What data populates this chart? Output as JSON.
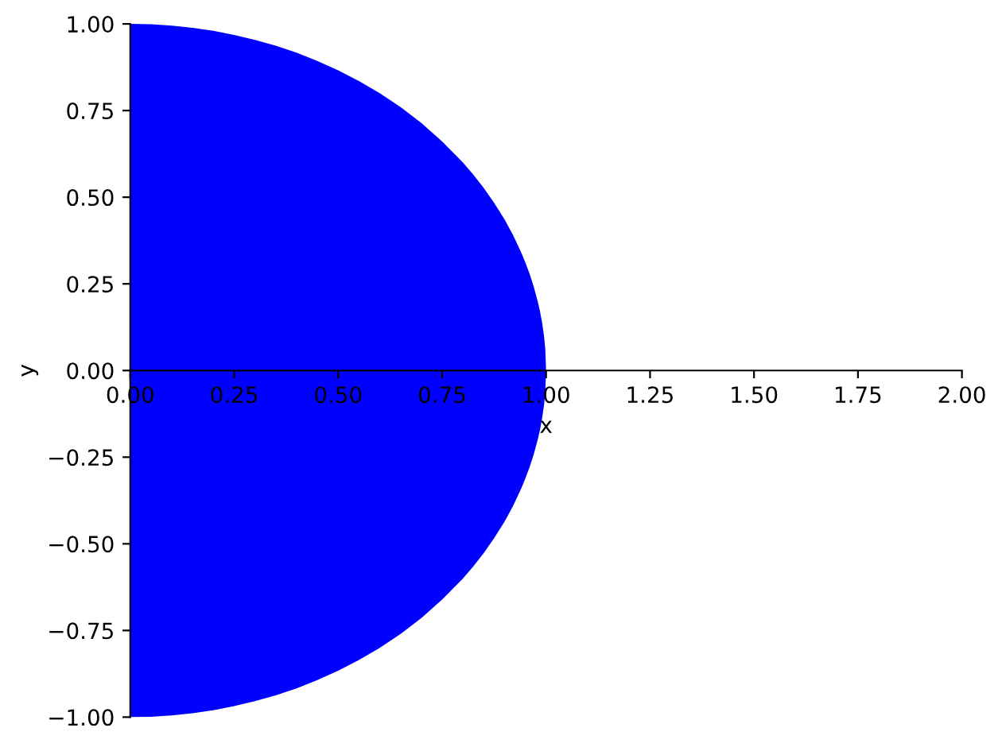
{
  "chart_data": {
    "type": "area",
    "xlabel": "x",
    "ylabel": "y",
    "x": [
      0,
      0.05,
      0.1,
      0.15,
      0.2,
      0.25,
      0.3,
      0.35,
      0.4,
      0.45,
      0.5,
      0.55,
      0.6,
      0.65,
      0.7,
      0.75,
      0.8,
      0.825,
      0.85,
      0.875,
      0.9,
      0.92,
      0.94,
      0.95,
      0.96,
      0.97,
      0.98,
      0.985,
      0.99,
      0.995,
      0.998,
      1.0
    ],
    "series": [
      {
        "color": "#0000ff",
        "values": [
          1,
          0.999,
          0.995,
          0.989,
          0.98,
          0.968,
          0.954,
          0.937,
          0.917,
          0.893,
          0.866,
          0.835,
          0.8,
          0.76,
          0.714,
          0.661,
          0.6,
          0.565,
          0.527,
          0.484,
          0.436,
          0.392,
          0.341,
          0.312,
          0.28,
          0.243,
          0.199,
          0.173,
          0.141,
          0.1,
          0.063,
          0
        ]
      },
      {
        "color": "#0000ff",
        "values": [
          -1,
          -0.999,
          -0.995,
          -0.989,
          -0.98,
          -0.968,
          -0.954,
          -0.937,
          -0.917,
          -0.893,
          -0.866,
          -0.835,
          -0.8,
          -0.76,
          -0.714,
          -0.661,
          -0.6,
          -0.565,
          -0.527,
          -0.484,
          -0.436,
          -0.392,
          -0.341,
          -0.312,
          -0.28,
          -0.243,
          -0.199,
          -0.173,
          -0.141,
          -0.1,
          -0.063,
          0
        ]
      }
    ],
    "xlim": [
      0,
      2
    ],
    "ylim": [
      -1,
      1
    ],
    "xticks": [
      {
        "value": 0,
        "label": "0.00"
      },
      {
        "value": 0.25,
        "label": "0.25"
      },
      {
        "value": 0.5,
        "label": "0.50"
      },
      {
        "value": 0.75,
        "label": "0.75"
      },
      {
        "value": 1,
        "label": "1.00"
      },
      {
        "value": 1.25,
        "label": "1.25"
      },
      {
        "value": 1.5,
        "label": "1.50"
      },
      {
        "value": 1.75,
        "label": "1.75"
      },
      {
        "value": 2,
        "label": "2.00"
      }
    ],
    "yticks": [
      {
        "value": -1,
        "label": "−1.00"
      },
      {
        "value": -0.75,
        "label": "−0.75"
      },
      {
        "value": -0.5,
        "label": "−0.50"
      },
      {
        "value": -0.25,
        "label": "−0.25"
      },
      {
        "value": 0,
        "label": "0.00"
      },
      {
        "value": 0.25,
        "label": "0.25"
      },
      {
        "value": 0.5,
        "label": "0.50"
      },
      {
        "value": 0.75,
        "label": "0.75"
      },
      {
        "value": 1,
        "label": "1.00"
      }
    ],
    "grid": false
  }
}
